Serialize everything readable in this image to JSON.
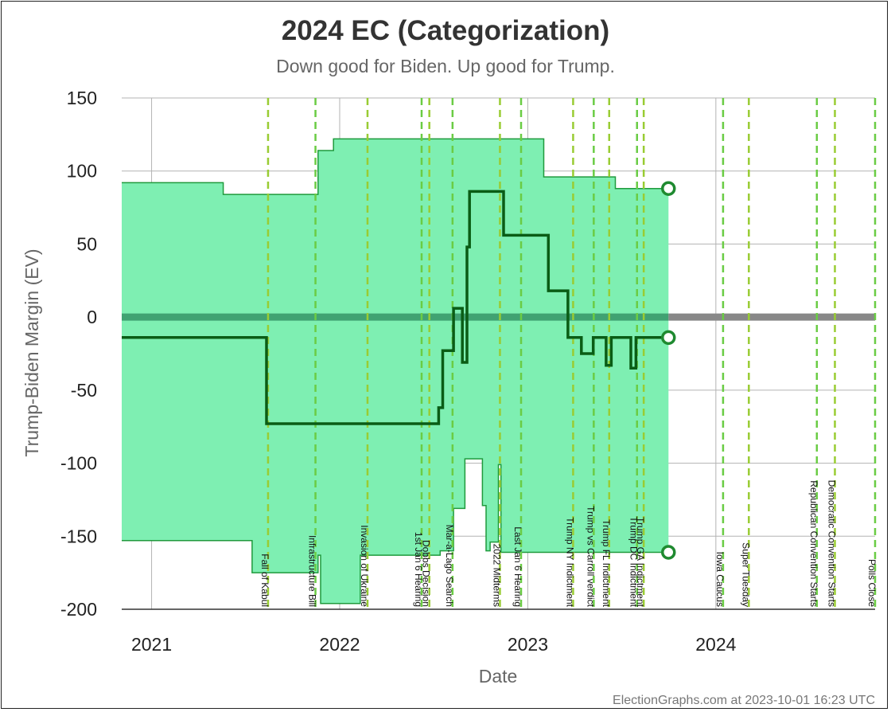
{
  "chart_data": {
    "type": "line",
    "title": "2024 EC (Categorization)",
    "subtitle": "Down good for Biden. Up good for Trump.",
    "xlabel": "Date",
    "ylabel": "Trump-Biden Margin (EV)",
    "xlim": [
      "2020-11-04",
      "2024-11-05"
    ],
    "ylim": [
      -200,
      150
    ],
    "y_ticks": [
      "150",
      "100",
      "50",
      "0",
      "-50",
      "-100",
      "-150",
      "-200"
    ],
    "x_ticks": [
      {
        "label": "2021",
        "date": "2021-01-01"
      },
      {
        "label": "2022",
        "date": "2022-01-01"
      },
      {
        "label": "2023",
        "date": "2023-01-01"
      },
      {
        "label": "2024",
        "date": "2024-01-01"
      }
    ],
    "grid": true,
    "colors": {
      "band_fill": "#7eefb2",
      "band_line": "#1f9a3c",
      "center_line": "#0a5c15",
      "endpoint_marker": "#1f8a30",
      "zero_line_history": "#3a9a6c",
      "zero_line_future": "#888888",
      "event_line": "#99cc33",
      "event_line_alt": "#6acc44"
    },
    "series": [
      {
        "role": "expected",
        "points": [
          [
            "2020-11-04",
            -14
          ],
          [
            "2021-08-12",
            -14
          ],
          [
            "2021-08-12",
            -73
          ],
          [
            "2022-07-12",
            -73
          ],
          [
            "2022-07-12",
            -62
          ],
          [
            "2022-07-20",
            -62
          ],
          [
            "2022-07-20",
            -23
          ],
          [
            "2022-08-10",
            -23
          ],
          [
            "2022-08-10",
            6
          ],
          [
            "2022-08-27",
            6
          ],
          [
            "2022-08-27",
            -31
          ],
          [
            "2022-09-05",
            -31
          ],
          [
            "2022-09-05",
            48
          ],
          [
            "2022-09-10",
            48
          ],
          [
            "2022-09-10",
            86
          ],
          [
            "2022-11-15",
            86
          ],
          [
            "2022-11-15",
            56
          ],
          [
            "2023-02-10",
            56
          ],
          [
            "2023-02-10",
            18
          ],
          [
            "2023-03-20",
            18
          ],
          [
            "2023-03-20",
            -14
          ],
          [
            "2023-04-15",
            -14
          ],
          [
            "2023-04-15",
            -25
          ],
          [
            "2023-05-08",
            -25
          ],
          [
            "2023-05-08",
            -14
          ],
          [
            "2023-06-02",
            -14
          ],
          [
            "2023-06-02",
            -33
          ],
          [
            "2023-06-12",
            -33
          ],
          [
            "2023-06-12",
            -14
          ],
          [
            "2023-07-20",
            -14
          ],
          [
            "2023-07-20",
            -35
          ],
          [
            "2023-07-30",
            -35
          ],
          [
            "2023-07-30",
            -14
          ],
          [
            "2023-10-01",
            -14
          ]
        ]
      },
      {
        "role": "upper",
        "points": [
          [
            "2020-11-04",
            92
          ],
          [
            "2021-05-20",
            92
          ],
          [
            "2021-05-20",
            84
          ],
          [
            "2021-11-20",
            84
          ],
          [
            "2021-11-20",
            114
          ],
          [
            "2021-12-20",
            114
          ],
          [
            "2021-12-20",
            122
          ],
          [
            "2023-02-01",
            122
          ],
          [
            "2023-02-01",
            96
          ],
          [
            "2023-06-20",
            96
          ],
          [
            "2023-06-20",
            88
          ],
          [
            "2023-10-01",
            88
          ]
        ]
      },
      {
        "role": "lower",
        "points": [
          [
            "2020-11-04",
            -153
          ],
          [
            "2021-07-15",
            -153
          ],
          [
            "2021-07-15",
            -175
          ],
          [
            "2021-11-20",
            -175
          ],
          [
            "2021-11-20",
            -163
          ],
          [
            "2021-11-25",
            -163
          ],
          [
            "2021-11-25",
            -196
          ],
          [
            "2022-02-10",
            -196
          ],
          [
            "2022-02-10",
            -163
          ],
          [
            "2022-07-15",
            -163
          ],
          [
            "2022-07-15",
            -160
          ],
          [
            "2022-08-10",
            -160
          ],
          [
            "2022-08-10",
            -131
          ],
          [
            "2022-09-01",
            -131
          ],
          [
            "2022-09-01",
            -97
          ],
          [
            "2022-10-05",
            -97
          ],
          [
            "2022-10-05",
            -129
          ],
          [
            "2022-10-12",
            -129
          ],
          [
            "2022-10-12",
            -160
          ],
          [
            "2022-10-20",
            -160
          ],
          [
            "2022-10-20",
            -154
          ],
          [
            "2022-11-05",
            -154
          ],
          [
            "2022-11-05",
            -101
          ],
          [
            "2022-11-10",
            -101
          ],
          [
            "2022-11-10",
            -161
          ],
          [
            "2023-10-01",
            -161
          ]
        ]
      }
    ],
    "endpoints": {
      "date": "2023-10-01",
      "values": [
        88,
        -14,
        -161
      ]
    },
    "events": [
      {
        "label": "Fall of Kabul",
        "date": "2021-08-15"
      },
      {
        "label": "Infrastructure Bill",
        "date": "2021-11-15"
      },
      {
        "label": "Invasion of Ukraine",
        "date": "2022-02-24"
      },
      {
        "label": "1st Jan 6 Hearing",
        "date": "2022-06-09"
      },
      {
        "label": "Dobbs Decision",
        "date": "2022-06-24"
      },
      {
        "label": "Mar-a-Lago Search",
        "date": "2022-08-08"
      },
      {
        "label": "2022 Midterms",
        "date": "2022-11-08"
      },
      {
        "label": "Last Jan 6 Hearing",
        "date": "2022-12-19"
      },
      {
        "label": "Trump NY Indictment",
        "date": "2023-03-30"
      },
      {
        "label": "Trump vs Carroll verdict",
        "date": "2023-05-09"
      },
      {
        "label": "Trump FL Indictment",
        "date": "2023-06-08"
      },
      {
        "label": "Trump DC Indictment",
        "date": "2023-08-01"
      },
      {
        "label": "Trump GA Indictment",
        "date": "2023-08-14"
      },
      {
        "label": "Iowa Caucus",
        "date": "2024-01-15"
      },
      {
        "label": "Super Tuesday",
        "date": "2024-03-05"
      },
      {
        "label": "Republican Convention Starts",
        "date": "2024-07-15"
      },
      {
        "label": "Democratic Convention Starts",
        "date": "2024-08-19"
      },
      {
        "label": "Polls Close",
        "date": "2024-11-05"
      }
    ]
  },
  "footer": "ElectionGraphs.com at 2023-10-01 16:23 UTC"
}
